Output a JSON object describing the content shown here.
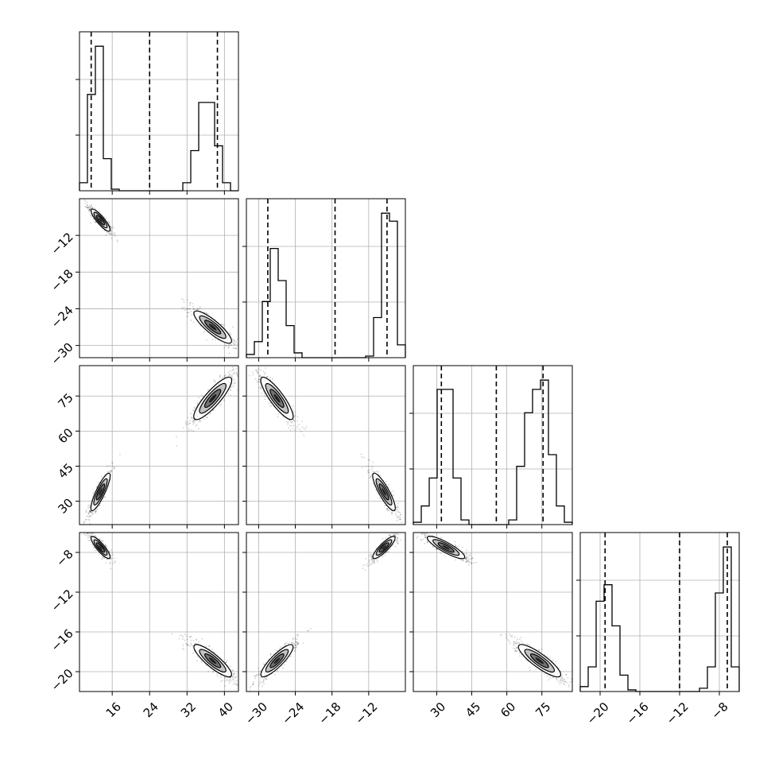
{
  "chart_data": {
    "type": "corner",
    "grid": true,
    "parameters": [
      {
        "id": "p1",
        "range": [
          9,
          43
        ],
        "ticks": [
          16,
          24,
          32,
          40
        ],
        "tick_labels": [
          "16",
          "24",
          "32",
          "40"
        ],
        "quantile_lines": [
          11.5,
          24.0,
          38.5
        ],
        "histogram": {
          "bin_edges": [
            9,
            10.7,
            12.4,
            14.1,
            15.8,
            17.5,
            19.2,
            20.9,
            22.6,
            24.3,
            26.0,
            27.7,
            29.4,
            31.1,
            32.8,
            34.5,
            36.2,
            37.9,
            39.6,
            41.3,
            43.0
          ],
          "counts": [
            0.05,
            0.6,
            0.9,
            0.2,
            0.01,
            0,
            0,
            0,
            0,
            0,
            0,
            0,
            0,
            0.05,
            0.25,
            0.55,
            0.55,
            0.28,
            0.05,
            0
          ]
        },
        "modes": [
          {
            "center": 13.5,
            "sd": 1.0,
            "weight": 0.5
          },
          {
            "center": 37.5,
            "sd": 2.0,
            "weight": 0.5
          }
        ]
      },
      {
        "id": "p2",
        "range": [
          -32,
          -6
        ],
        "ticks": [
          -12,
          -18,
          -24,
          -30
        ],
        "tick_labels": [
          "−12",
          "−18",
          "−24",
          "−30"
        ],
        "tick_labels_x": [
          "−30",
          "−24",
          "−18",
          "−12"
        ],
        "ticks_x": [
          -30,
          -24,
          -18,
          -12
        ],
        "quantile_lines": [
          -28.5,
          -17.5,
          -9.0
        ],
        "histogram": {
          "bin_edges": [
            -32,
            -30.7,
            -29.4,
            -28.1,
            -26.8,
            -25.5,
            -24.2,
            -22.9,
            -21.6,
            -20.3,
            -19.0,
            -17.7,
            -16.4,
            -15.1,
            -13.8,
            -12.5,
            -11.2,
            -9.9,
            -8.6,
            -7.3,
            -6.0
          ],
          "counts": [
            0.02,
            0.1,
            0.35,
            0.68,
            0.48,
            0.2,
            0.03,
            0,
            0,
            0,
            0,
            0,
            0,
            0,
            0,
            0.01,
            0.25,
            0.9,
            0.85,
            0.08
          ]
        },
        "modes": [
          {
            "center": -27.0,
            "sd": 1.3,
            "weight": 0.5
          },
          {
            "center": -9.5,
            "sd": 0.9,
            "weight": 0.5
          }
        ]
      },
      {
        "id": "p3",
        "range": [
          20,
          88
        ],
        "ticks": [
          30,
          45,
          60,
          75
        ],
        "tick_labels": [
          "30",
          "45",
          "60",
          "75"
        ],
        "quantile_lines": [
          32.0,
          55.5,
          75.5
        ],
        "histogram": {
          "bin_edges": [
            20,
            23.4,
            26.8,
            30.2,
            33.6,
            37.0,
            40.4,
            43.8,
            47.2,
            50.6,
            54.0,
            57.4,
            60.8,
            64.2,
            67.6,
            71.0,
            74.4,
            77.8,
            81.2,
            84.6,
            88.0
          ],
          "counts": [
            0.01,
            0.08,
            0.2,
            0.58,
            0.58,
            0.2,
            0.02,
            0,
            0,
            0,
            0,
            0,
            0.02,
            0.25,
            0.48,
            0.58,
            0.62,
            0.3,
            0.08,
            0.01
          ]
        },
        "modes": [
          {
            "center": 34.0,
            "sd": 4.0,
            "weight": 0.5
          },
          {
            "center": 74.0,
            "sd": 4.5,
            "weight": 0.5
          }
        ]
      },
      {
        "id": "p4",
        "range": [
          -22,
          -6
        ],
        "ticks": [
          -8,
          -12,
          -16,
          -20
        ],
        "tick_labels": [
          "−8",
          "−12",
          "−16",
          "−20"
        ],
        "ticks_x": [
          -20,
          -16,
          -12,
          -8
        ],
        "tick_labels_x": [
          "−20",
          "−16",
          "−12",
          "−8"
        ],
        "quantile_lines": [
          -19.5,
          -12.0,
          -7.2
        ],
        "histogram": {
          "bin_edges": [
            -22,
            -21.2,
            -20.4,
            -19.6,
            -18.8,
            -18.0,
            -17.2,
            -16.4,
            -15.6,
            -14.8,
            -14.0,
            -13.2,
            -12.4,
            -11.6,
            -10.8,
            -10.0,
            -9.2,
            -8.4,
            -7.6,
            -6.8,
            -6.0
          ],
          "counts": [
            0.03,
            0.15,
            0.55,
            0.65,
            0.4,
            0.1,
            0.01,
            0,
            0,
            0,
            0,
            0,
            0,
            0,
            0,
            0.02,
            0.15,
            0.6,
            0.88,
            0.15
          ]
        },
        "modes": [
          {
            "center": -18.9,
            "sd": 0.8,
            "weight": 0.5
          },
          {
            "center": -7.5,
            "sd": 0.55,
            "weight": 0.5
          }
        ]
      }
    ],
    "correlation_sign": {
      "p2|p1": -1,
      "p3|p1": 1,
      "p3|p2": -1,
      "p4|p1": -1,
      "p4|p2": 1,
      "p4|p3": -1
    }
  }
}
